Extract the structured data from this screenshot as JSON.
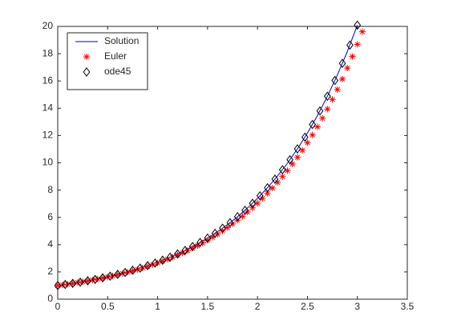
{
  "chart_data": {
    "type": "scatter",
    "xlim": [
      0,
      3.5
    ],
    "ylim": [
      0,
      20
    ],
    "xticks": [
      0,
      0.5,
      1,
      1.5,
      2,
      2.5,
      3,
      3.5
    ],
    "yticks": [
      0,
      2,
      4,
      6,
      8,
      10,
      12,
      14,
      16,
      18,
      20
    ],
    "grid": false,
    "legend": "top-left",
    "series": [
      {
        "name": "Solution",
        "color": "#0000cc",
        "marker": "line",
        "x": [
          0,
          0.1,
          0.2,
          0.3,
          0.4,
          0.5,
          0.6,
          0.7,
          0.8,
          0.9,
          1,
          1.1,
          1.2,
          1.3,
          1.4,
          1.5,
          1.6,
          1.7,
          1.8,
          1.9,
          2,
          2.1,
          2.2,
          2.3,
          2.4,
          2.5,
          2.6,
          2.7,
          2.8,
          2.9,
          3
        ],
        "values": [
          1,
          1.11,
          1.22,
          1.35,
          1.49,
          1.65,
          1.82,
          2.01,
          2.23,
          2.46,
          2.72,
          3,
          3.32,
          3.67,
          4.06,
          4.48,
          4.95,
          5.47,
          6.05,
          6.69,
          7.39,
          8.17,
          9.03,
          9.97,
          11.02,
          12.18,
          13.46,
          14.88,
          16.44,
          18.17,
          20.09
        ]
      },
      {
        "name": "Euler",
        "color": "#ff0000",
        "marker": "star",
        "x": [
          0,
          0.05,
          0.1,
          0.15,
          0.2,
          0.25,
          0.3,
          0.35,
          0.4,
          0.45,
          0.5,
          0.55,
          0.6,
          0.65,
          0.7,
          0.75,
          0.8,
          0.85,
          0.9,
          0.95,
          1,
          1.05,
          1.1,
          1.15,
          1.2,
          1.25,
          1.3,
          1.35,
          1.4,
          1.45,
          1.5,
          1.55,
          1.6,
          1.65,
          1.7,
          1.75,
          1.8,
          1.85,
          1.9,
          1.95,
          2,
          2.05,
          2.1,
          2.15,
          2.2,
          2.25,
          2.3,
          2.35,
          2.4,
          2.45,
          2.5,
          2.55,
          2.6,
          2.65,
          2.7,
          2.75,
          2.8,
          2.85,
          2.9,
          2.95,
          3,
          3.05
        ],
        "values": [
          1,
          1.05,
          1.1,
          1.16,
          1.22,
          1.28,
          1.34,
          1.41,
          1.48,
          1.55,
          1.63,
          1.71,
          1.8,
          1.89,
          1.98,
          2.08,
          2.18,
          2.29,
          2.41,
          2.53,
          2.65,
          2.79,
          2.93,
          3.07,
          3.23,
          3.39,
          3.56,
          3.73,
          3.92,
          4.12,
          4.32,
          4.54,
          4.76,
          5,
          5.25,
          5.52,
          5.79,
          6.08,
          6.39,
          6.7,
          7.04,
          7.39,
          7.76,
          8.15,
          8.56,
          8.99,
          9.43,
          9.91,
          10.4,
          10.92,
          11.47,
          12.04,
          12.64,
          13.27,
          13.94,
          14.64,
          15.37,
          16.14,
          16.94,
          17.79,
          18.68,
          19.61
        ]
      },
      {
        "name": "ode45",
        "color": "#000000",
        "marker": "diamond",
        "x": [
          0,
          0.075,
          0.15,
          0.225,
          0.3,
          0.375,
          0.45,
          0.525,
          0.6,
          0.675,
          0.75,
          0.825,
          0.9,
          0.975,
          1.05,
          1.125,
          1.2,
          1.275,
          1.35,
          1.425,
          1.5,
          1.575,
          1.65,
          1.725,
          1.8,
          1.875,
          1.95,
          2.025,
          2.1,
          2.175,
          2.25,
          2.325,
          2.4,
          2.475,
          2.55,
          2.625,
          2.7,
          2.775,
          2.85,
          2.925,
          3
        ],
        "values": [
          1,
          1.08,
          1.16,
          1.25,
          1.35,
          1.45,
          1.57,
          1.69,
          1.82,
          1.96,
          2.12,
          2.28,
          2.46,
          2.65,
          2.86,
          3.08,
          3.32,
          3.58,
          3.86,
          4.16,
          4.48,
          4.83,
          5.21,
          5.61,
          6.05,
          6.52,
          7.03,
          7.58,
          8.17,
          8.8,
          9.49,
          10.23,
          11.02,
          11.88,
          12.81,
          13.8,
          14.88,
          16.04,
          17.29,
          18.63,
          20.09
        ]
      }
    ]
  }
}
